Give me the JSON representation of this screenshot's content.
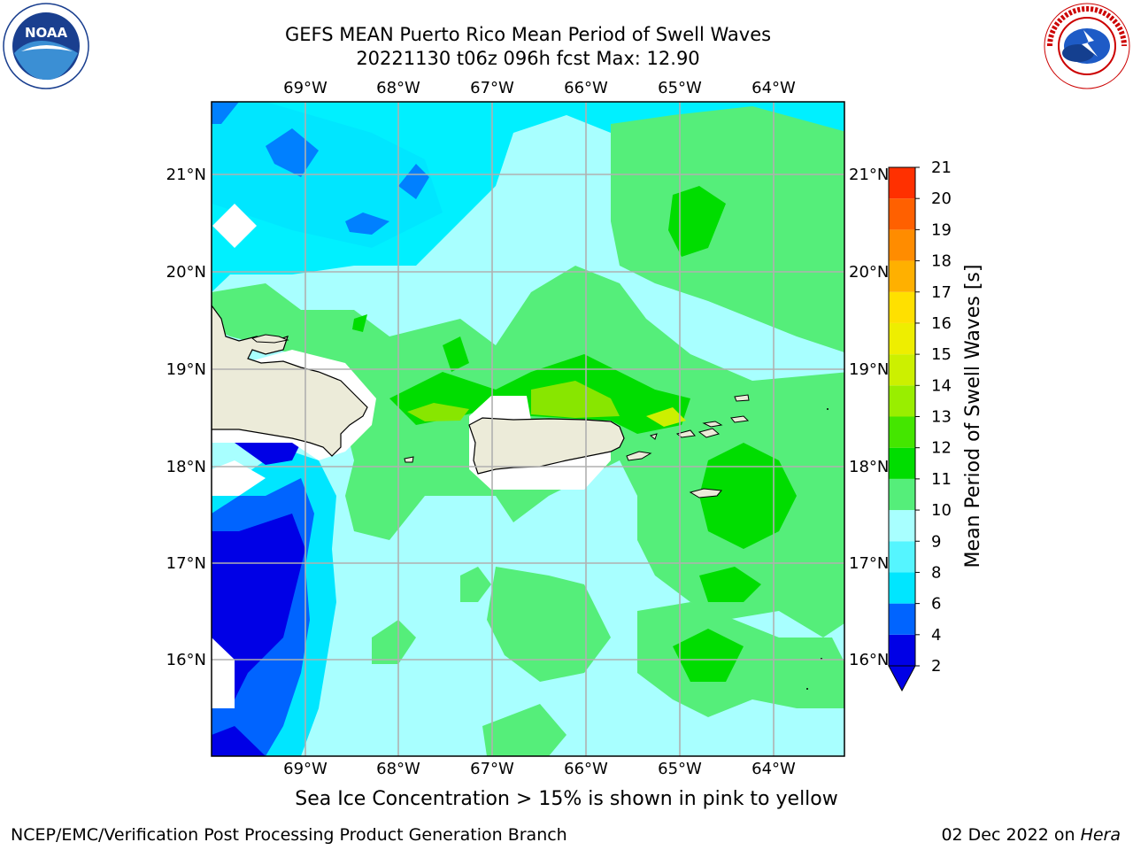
{
  "header": {
    "title_line1": "GEFS MEAN Puerto Rico Mean Period of Swell Waves",
    "title_line2": "20221130 t06z 096h fcst   Max: 12.90"
  },
  "logos": {
    "left": {
      "name": "noaa-logo",
      "text": "NOAA",
      "ring_text": "NATIONAL OCEANIC AND ATMOSPHERIC ADMINISTRATION · U.S. DEPARTMENT OF COMMERCE"
    },
    "right": {
      "name": "nws-logo",
      "ring_text": "NATIONAL WEATHER SERVICE"
    }
  },
  "map": {
    "lon_labels": [
      "69°W",
      "68°W",
      "67°W",
      "66°W",
      "65°W",
      "64°W"
    ],
    "lat_labels": [
      "21°N",
      "20°N",
      "19°N",
      "18°N",
      "17°N",
      "16°N"
    ],
    "land_color": "#ecebd9",
    "grid_color": "#b0b0b0"
  },
  "colorbar": {
    "label": "Mean Period of Swell Waves [s]",
    "ticks": [
      "2",
      "4",
      "6",
      "8",
      "9",
      "10",
      "11",
      "12",
      "13",
      "14",
      "15",
      "16",
      "17",
      "18",
      "19",
      "20",
      "21"
    ],
    "colors": [
      "#0000e6",
      "#0064ff",
      "#00e6ff",
      "#55f5ff",
      "#a8ffff",
      "#55ee7a",
      "#00dd00",
      "#44e600",
      "#99ee00",
      "#ccf000",
      "#eeee00",
      "#ffe000",
      "#ffb000",
      "#ff8c00",
      "#ff6000",
      "#ff3000"
    ],
    "extend_color": "#0000e6"
  },
  "footer": {
    "sea_ice_note": "Sea Ice Concentration > 15% is shown in pink to yellow",
    "left": "NCEP/EMC/Verification Post Processing Product Generation Branch",
    "date": "02 Dec 2022 on ",
    "host": "Hera"
  }
}
